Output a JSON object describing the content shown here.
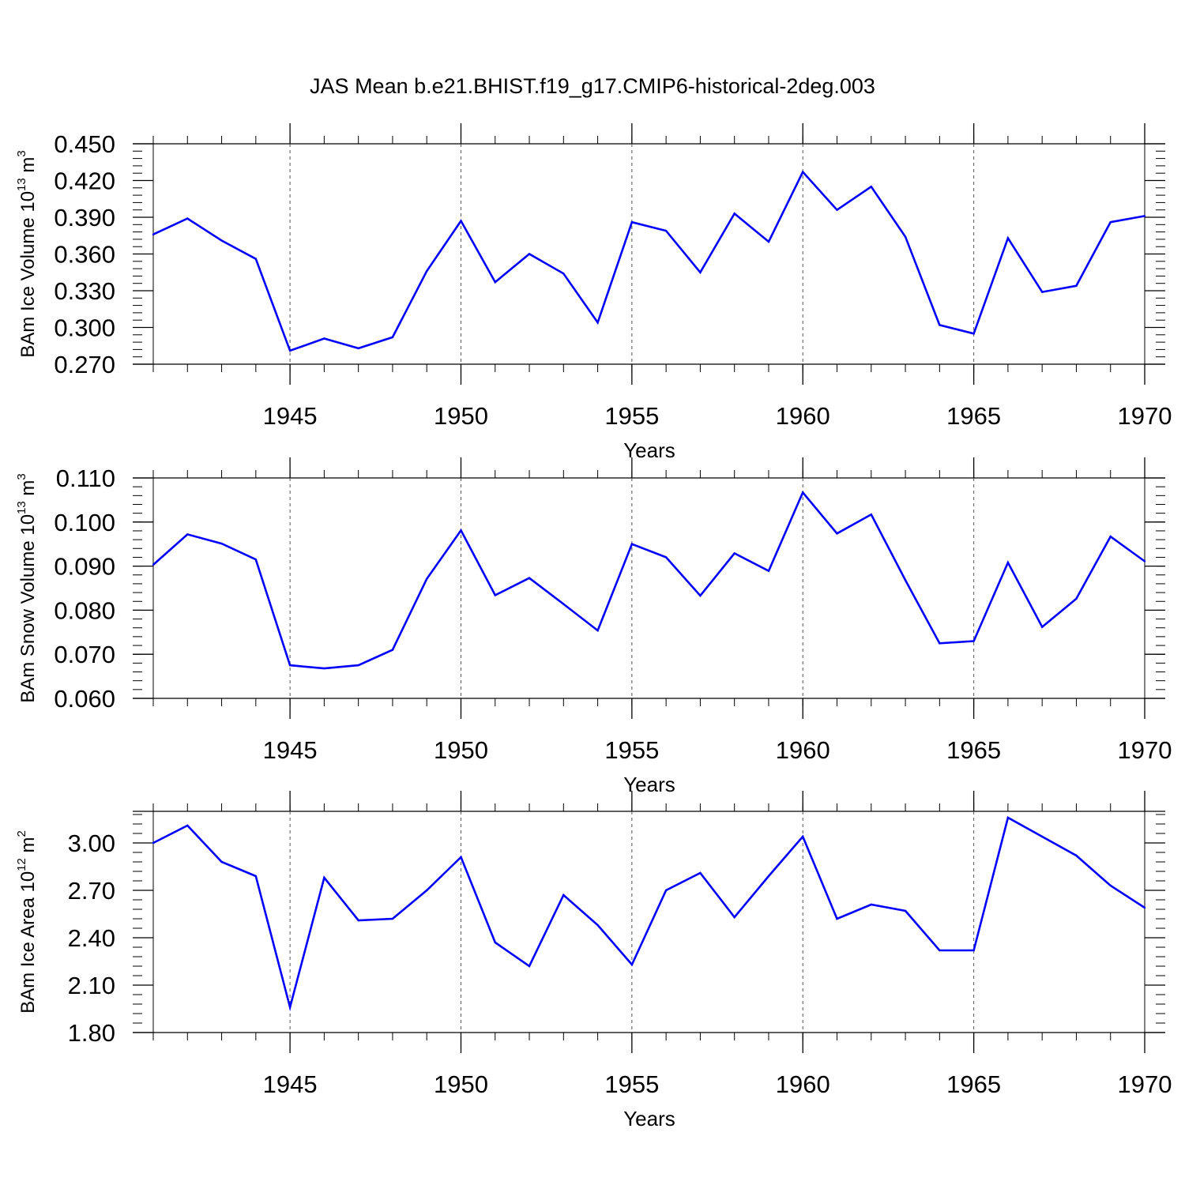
{
  "title": "JAS Mean b.e21.BHIST.f19_g17.CMIP6-historical-2deg.003",
  "colors": {
    "line": "#0000ff",
    "axis": "#000000",
    "grid": "#555555"
  },
  "chart_data": [
    {
      "type": "line",
      "ylabel_main": "BAm Ice Volume 10",
      "ylabel_exp": "13",
      "ylabel_unit": " m",
      "ylabel_unit_exp": "3",
      "xlabel": "Years",
      "ylim": [
        0.27,
        0.45
      ],
      "xlim": [
        1941,
        1970
      ],
      "yticks": [
        0.27,
        0.3,
        0.33,
        0.36,
        0.39,
        0.42,
        0.45
      ],
      "ytick_labels": [
        "0.270",
        "0.300",
        "0.330",
        "0.360",
        "0.390",
        "0.420",
        "0.450"
      ],
      "xticks": [
        1945,
        1950,
        1955,
        1960,
        1965,
        1970
      ],
      "xtick_labels": [
        "1945",
        "1950",
        "1955",
        "1960",
        "1965",
        "1970"
      ],
      "x": [
        1941,
        1942,
        1943,
        1944,
        1945,
        1946,
        1947,
        1948,
        1949,
        1950,
        1951,
        1952,
        1953,
        1954,
        1955,
        1956,
        1957,
        1958,
        1959,
        1960,
        1961,
        1962,
        1963,
        1964,
        1965,
        1966,
        1967,
        1968,
        1969,
        1970
      ],
      "values": [
        0.376,
        0.389,
        0.371,
        0.356,
        0.281,
        0.291,
        0.283,
        0.292,
        0.346,
        0.387,
        0.337,
        0.36,
        0.344,
        0.304,
        0.386,
        0.379,
        0.345,
        0.393,
        0.37,
        0.427,
        0.396,
        0.415,
        0.374,
        0.302,
        0.295,
        0.373,
        0.329,
        0.334,
        0.386,
        0.391
      ]
    },
    {
      "type": "line",
      "ylabel_main": "BAm Snow Volume 10",
      "ylabel_exp": "13",
      "ylabel_unit": " m",
      "ylabel_unit_exp": "3",
      "xlabel": "Years",
      "ylim": [
        0.06,
        0.11
      ],
      "xlim": [
        1941,
        1970
      ],
      "yticks": [
        0.06,
        0.07,
        0.08,
        0.09,
        0.1,
        0.11
      ],
      "ytick_labels": [
        "0.060",
        "0.070",
        "0.080",
        "0.090",
        "0.100",
        "0.110"
      ],
      "xticks": [
        1945,
        1950,
        1955,
        1960,
        1965,
        1970
      ],
      "xtick_labels": [
        "1945",
        "1950",
        "1955",
        "1960",
        "1965",
        "1970"
      ],
      "x": [
        1941,
        1942,
        1943,
        1944,
        1945,
        1946,
        1947,
        1948,
        1949,
        1950,
        1951,
        1952,
        1953,
        1954,
        1955,
        1956,
        1957,
        1958,
        1959,
        1960,
        1961,
        1962,
        1963,
        1964,
        1965,
        1966,
        1967,
        1968,
        1969,
        1970
      ],
      "values": [
        0.0903,
        0.0972,
        0.0951,
        0.0915,
        0.0675,
        0.0668,
        0.0675,
        0.071,
        0.0871,
        0.0981,
        0.0834,
        0.0873,
        0.0814,
        0.0754,
        0.095,
        0.092,
        0.0833,
        0.0929,
        0.0889,
        0.1067,
        0.0974,
        0.1017,
        0.0868,
        0.0725,
        0.073,
        0.0908,
        0.0762,
        0.0826,
        0.0967,
        0.0911
      ]
    },
    {
      "type": "line",
      "ylabel_main": "BAm Ice Area 10",
      "ylabel_exp": "12",
      "ylabel_unit": " m",
      "ylabel_unit_exp": "2",
      "xlabel": "Years",
      "ylim": [
        1.8,
        3.2
      ],
      "xlim": [
        1941,
        1970
      ],
      "yticks": [
        1.8,
        2.1,
        2.4,
        2.7,
        3.0
      ],
      "ytick_labels": [
        "1.80",
        "2.10",
        "2.40",
        "2.70",
        "3.00"
      ],
      "xticks": [
        1945,
        1950,
        1955,
        1960,
        1965,
        1970
      ],
      "xtick_labels": [
        "1945",
        "1950",
        "1955",
        "1960",
        "1965",
        "1970"
      ],
      "x": [
        1941,
        1942,
        1943,
        1944,
        1945,
        1946,
        1947,
        1948,
        1949,
        1950,
        1951,
        1952,
        1953,
        1954,
        1955,
        1956,
        1957,
        1958,
        1959,
        1960,
        1961,
        1962,
        1963,
        1964,
        1965,
        1966,
        1967,
        1968,
        1969,
        1970
      ],
      "values": [
        3.0,
        3.11,
        2.88,
        2.79,
        1.96,
        2.78,
        2.51,
        2.52,
        2.7,
        2.91,
        2.37,
        2.22,
        2.67,
        2.48,
        2.23,
        2.7,
        2.81,
        2.53,
        2.79,
        3.04,
        2.52,
        2.61,
        2.57,
        2.32,
        2.32,
        3.16,
        3.04,
        2.92,
        2.73,
        2.59
      ]
    }
  ]
}
